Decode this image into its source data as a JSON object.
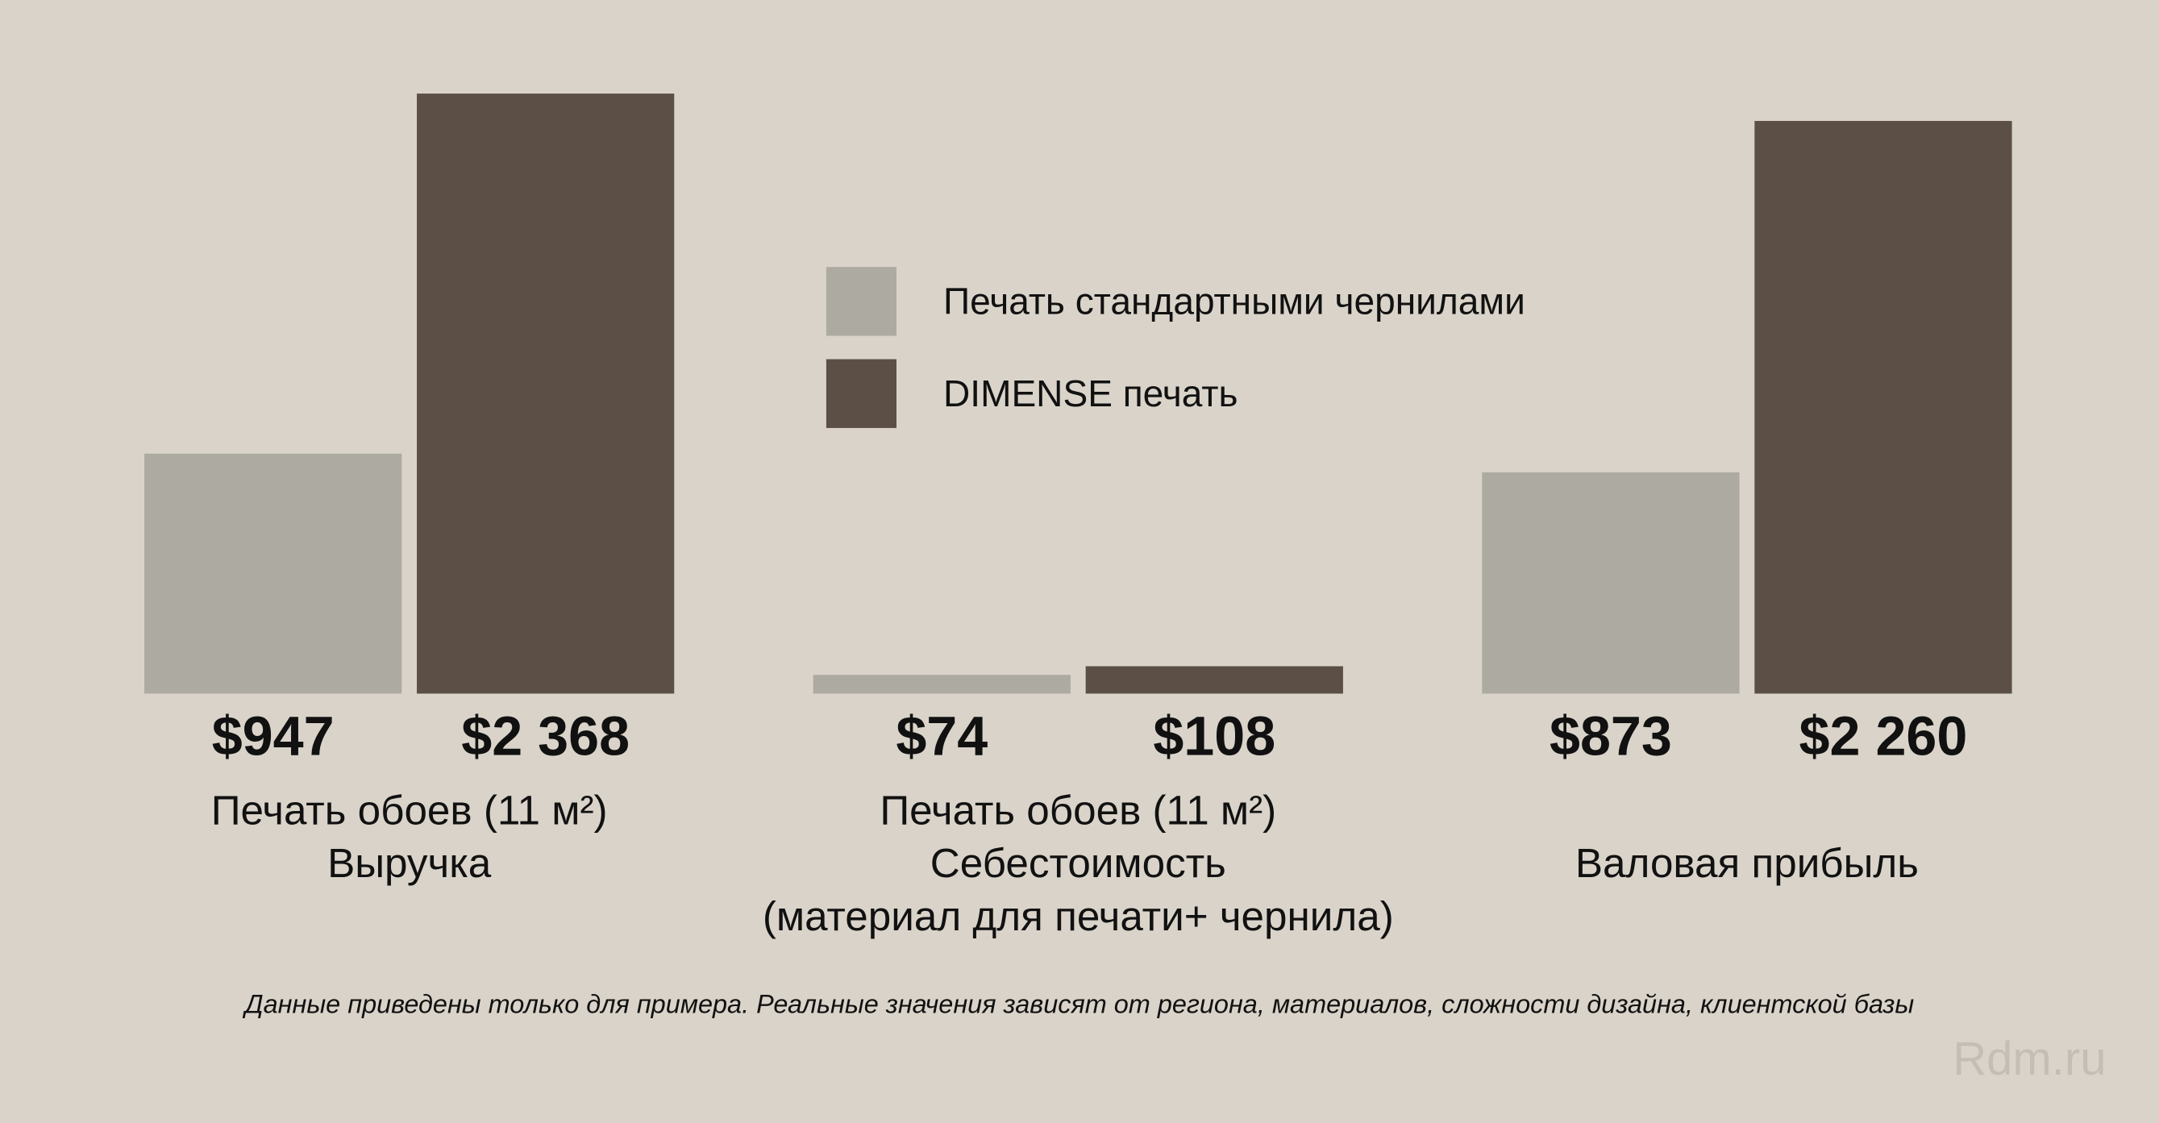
{
  "chart_data": {
    "type": "bar",
    "categories": [
      [
        "Печать обоев (11 м²)",
        "Выручка"
      ],
      [
        "Печать обоев (11 м²)",
        "Себестоимость",
        "(материал для печати+ чернила)"
      ],
      [
        "Валовая прибыль"
      ]
    ],
    "series": [
      {
        "name": "Печать стандартными чернилами",
        "color": "#adaaa2",
        "values": [
          947,
          74,
          873
        ],
        "value_labels": [
          "$947",
          "$74",
          "$873"
        ]
      },
      {
        "name": "DIMENSE печать",
        "color": "#5b4f46",
        "values": [
          2368,
          108,
          2260
        ],
        "value_labels": [
          "$2 368",
          "$108",
          "$2 260"
        ]
      }
    ],
    "ylim": [
      0,
      2368
    ],
    "legend": "top-center",
    "footnote": "Данные приведены только для примера. Реальные значения зависят от региона, материалов, сложности дизайна, клиентской базы",
    "watermark": "Rdm.ru"
  }
}
